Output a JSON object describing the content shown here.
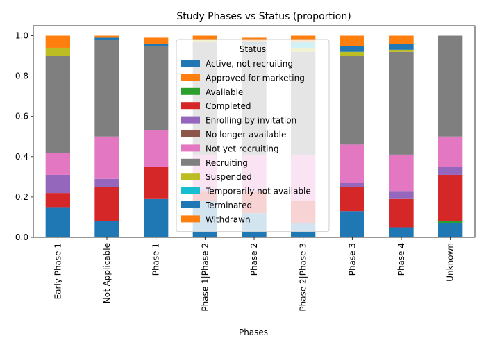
{
  "chart_data": {
    "type": "bar",
    "stacked": true,
    "title": "Study Phases vs Status (proportion)",
    "xlabel": "Phases",
    "ylabel": "",
    "ylim": [
      0,
      1.05
    ],
    "yticks": [
      "0.0",
      "0.2",
      "0.4",
      "0.6",
      "0.8",
      "1.0"
    ],
    "categories": [
      "Early Phase 1",
      "Not Applicable",
      "Phase 1",
      "Phase 1|Phase 2",
      "Phase 2",
      "Phase 2|Phase 3",
      "Phase 3",
      "Phase 4",
      "Unknown"
    ],
    "legend": {
      "title": "Status",
      "placement": "upper center, overlapping bars"
    },
    "series": [
      {
        "name": "Active, not recruiting",
        "color": "#1f77b4",
        "values": [
          0.15,
          0.08,
          0.19,
          0.18,
          0.12,
          0.07,
          0.13,
          0.05,
          0.07
        ]
      },
      {
        "name": "Approved for marketing",
        "color": "#ff7f0e",
        "values": [
          0.0,
          0.0,
          0.0,
          0.0,
          0.0,
          0.0,
          0.0,
          0.0,
          0.0
        ]
      },
      {
        "name": "Available",
        "color": "#2ca02c",
        "values": [
          0.0,
          0.0,
          0.0,
          0.0,
          0.0,
          0.0,
          0.0,
          0.0,
          0.01
        ]
      },
      {
        "name": "Completed",
        "color": "#d62728",
        "values": [
          0.07,
          0.17,
          0.16,
          0.05,
          0.11,
          0.11,
          0.12,
          0.14,
          0.23
        ]
      },
      {
        "name": "Enrolling by invitation",
        "color": "#9467bd",
        "values": [
          0.09,
          0.04,
          0.0,
          0.01,
          0.01,
          0.0,
          0.02,
          0.04,
          0.04
        ]
      },
      {
        "name": "No longer available",
        "color": "#8c564b",
        "values": [
          0.0,
          0.0,
          0.0,
          0.0,
          0.0,
          0.0,
          0.0,
          0.0,
          0.0
        ]
      },
      {
        "name": "Not yet recruiting",
        "color": "#e377c2",
        "values": [
          0.11,
          0.21,
          0.18,
          0.17,
          0.17,
          0.23,
          0.19,
          0.18,
          0.15
        ]
      },
      {
        "name": "Recruiting",
        "color": "#7f7f7f",
        "values": [
          0.48,
          0.48,
          0.42,
          0.56,
          0.55,
          0.51,
          0.44,
          0.51,
          0.5
        ]
      },
      {
        "name": "Suspended",
        "color": "#bcbd22",
        "values": [
          0.04,
          0.0,
          0.0,
          0.01,
          0.0,
          0.02,
          0.02,
          0.01,
          0.0
        ]
      },
      {
        "name": "Temporarily not available",
        "color": "#17becf",
        "values": [
          0.0,
          0.0,
          0.0,
          0.0,
          0.0,
          0.03,
          0.0,
          0.0,
          0.0
        ]
      },
      {
        "name": "Terminated",
        "color": "#1f77b4",
        "values": [
          0.0,
          0.01,
          0.01,
          0.0,
          0.01,
          0.0,
          0.03,
          0.03,
          0.0
        ]
      },
      {
        "name": "Withdrawn",
        "color": "#ff7f0e",
        "values": [
          0.06,
          0.01,
          0.03,
          0.02,
          0.02,
          0.03,
          0.05,
          0.04,
          0.0
        ]
      }
    ]
  }
}
